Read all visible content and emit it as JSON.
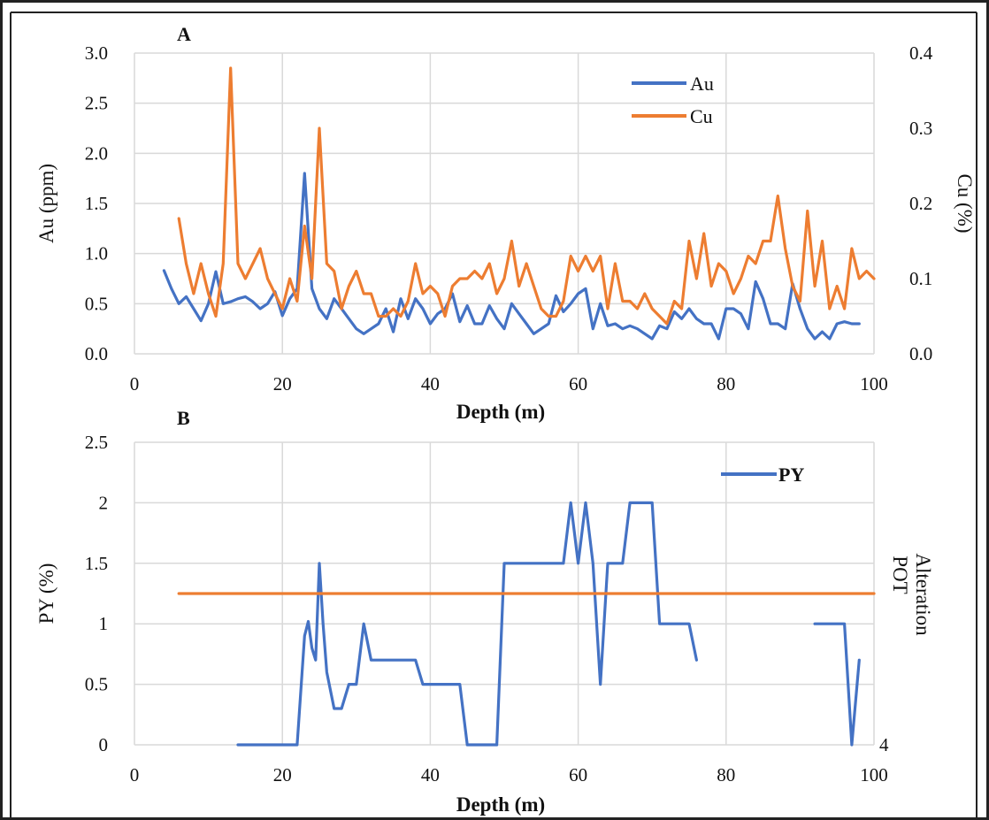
{
  "chart_data": [
    {
      "panel": "A",
      "type": "line",
      "xlabel": "Depth (m)",
      "ylabel_left": "Au (ppm)",
      "ylabel_right": "Cu (%)",
      "xlim": [
        0,
        100
      ],
      "ylim_left": [
        0,
        3.0
      ],
      "ylim_right": [
        0,
        0.4
      ],
      "x_ticks": [
        "0",
        "20",
        "40",
        "60",
        "80",
        "100"
      ],
      "y_ticks_left": [
        "0.0",
        "0.5",
        "1.0",
        "1.5",
        "2.0",
        "2.5",
        "3.0"
      ],
      "y_ticks_right": [
        "0.0",
        "0.1",
        "0.2",
        "0.3",
        "0.4"
      ],
      "grid": true,
      "legend": "top-right",
      "series": [
        {
          "name": "Au",
          "axis": "left",
          "color": "#4472C4",
          "points": [
            [
              4,
              0.83
            ],
            [
              5,
              0.65
            ],
            [
              6,
              0.5
            ],
            [
              7,
              0.57
            ],
            [
              8,
              0.45
            ],
            [
              9,
              0.33
            ],
            [
              10,
              0.5
            ],
            [
              11,
              0.82
            ],
            [
              12,
              0.5
            ],
            [
              13,
              0.52
            ],
            [
              14,
              0.55
            ],
            [
              15,
              0.57
            ],
            [
              16,
              0.52
            ],
            [
              17,
              0.45
            ],
            [
              18,
              0.5
            ],
            [
              19,
              0.62
            ],
            [
              20,
              0.38
            ],
            [
              21,
              0.55
            ],
            [
              22,
              0.65
            ],
            [
              23,
              1.8
            ],
            [
              24,
              0.65
            ],
            [
              25,
              0.45
            ],
            [
              26,
              0.35
            ],
            [
              27,
              0.55
            ],
            [
              28,
              0.45
            ],
            [
              29,
              0.35
            ],
            [
              30,
              0.25
            ],
            [
              31,
              0.2
            ],
            [
              32,
              0.25
            ],
            [
              33,
              0.3
            ],
            [
              34,
              0.45
            ],
            [
              35,
              0.22
            ],
            [
              36,
              0.55
            ],
            [
              37,
              0.35
            ],
            [
              38,
              0.55
            ],
            [
              39,
              0.45
            ],
            [
              40,
              0.3
            ],
            [
              41,
              0.4
            ],
            [
              42,
              0.45
            ],
            [
              43,
              0.6
            ],
            [
              44,
              0.32
            ],
            [
              45,
              0.48
            ],
            [
              46,
              0.3
            ],
            [
              47,
              0.3
            ],
            [
              48,
              0.48
            ],
            [
              49,
              0.35
            ],
            [
              50,
              0.25
            ],
            [
              51,
              0.5
            ],
            [
              52,
              0.4
            ],
            [
              53,
              0.3
            ],
            [
              54,
              0.2
            ],
            [
              55,
              0.25
            ],
            [
              56,
              0.3
            ],
            [
              57,
              0.58
            ],
            [
              58,
              0.42
            ],
            [
              59,
              0.5
            ],
            [
              60,
              0.6
            ],
            [
              61,
              0.65
            ],
            [
              62,
              0.25
            ],
            [
              63,
              0.5
            ],
            [
              64,
              0.28
            ],
            [
              65,
              0.3
            ],
            [
              66,
              0.25
            ],
            [
              67,
              0.28
            ],
            [
              68,
              0.25
            ],
            [
              69,
              0.2
            ],
            [
              70,
              0.15
            ],
            [
              71,
              0.28
            ],
            [
              72,
              0.25
            ],
            [
              73,
              0.42
            ],
            [
              74,
              0.35
            ],
            [
              75,
              0.45
            ],
            [
              76,
              0.35
            ],
            [
              77,
              0.3
            ],
            [
              78,
              0.3
            ],
            [
              79,
              0.15
            ],
            [
              80,
              0.45
            ],
            [
              81,
              0.45
            ],
            [
              82,
              0.4
            ],
            [
              83,
              0.25
            ],
            [
              84,
              0.72
            ],
            [
              85,
              0.55
            ],
            [
              86,
              0.3
            ],
            [
              87,
              0.3
            ],
            [
              88,
              0.25
            ],
            [
              89,
              0.7
            ],
            [
              90,
              0.45
            ],
            [
              91,
              0.25
            ],
            [
              92,
              0.15
            ],
            [
              93,
              0.22
            ],
            [
              94,
              0.15
            ],
            [
              95,
              0.3
            ],
            [
              96,
              0.32
            ],
            [
              97,
              0.3
            ],
            [
              98,
              0.3
            ]
          ]
        },
        {
          "name": "Cu",
          "axis": "right",
          "color": "#ED7D31",
          "points": [
            [
              6,
              0.18
            ],
            [
              7,
              0.12
            ],
            [
              8,
              0.08
            ],
            [
              9,
              0.12
            ],
            [
              10,
              0.08
            ],
            [
              11,
              0.05
            ],
            [
              12,
              0.12
            ],
            [
              13,
              0.38
            ],
            [
              14,
              0.12
            ],
            [
              15,
              0.1
            ],
            [
              16,
              0.12
            ],
            [
              17,
              0.14
            ],
            [
              18,
              0.1
            ],
            [
              19,
              0.08
            ],
            [
              20,
              0.06
            ],
            [
              21,
              0.1
            ],
            [
              22,
              0.07
            ],
            [
              23,
              0.17
            ],
            [
              24,
              0.1
            ],
            [
              25,
              0.3
            ],
            [
              26,
              0.12
            ],
            [
              27,
              0.11
            ],
            [
              28,
              0.06
            ],
            [
              29,
              0.09
            ],
            [
              30,
              0.11
            ],
            [
              31,
              0.08
            ],
            [
              32,
              0.08
            ],
            [
              33,
              0.05
            ],
            [
              34,
              0.05
            ],
            [
              35,
              0.06
            ],
            [
              36,
              0.05
            ],
            [
              37,
              0.07
            ],
            [
              38,
              0.12
            ],
            [
              39,
              0.08
            ],
            [
              40,
              0.09
            ],
            [
              41,
              0.08
            ],
            [
              42,
              0.05
            ],
            [
              43,
              0.09
            ],
            [
              44,
              0.1
            ],
            [
              45,
              0.1
            ],
            [
              46,
              0.11
            ],
            [
              47,
              0.1
            ],
            [
              48,
              0.12
            ],
            [
              49,
              0.08
            ],
            [
              50,
              0.1
            ],
            [
              51,
              0.15
            ],
            [
              52,
              0.09
            ],
            [
              53,
              0.12
            ],
            [
              54,
              0.09
            ],
            [
              55,
              0.06
            ],
            [
              56,
              0.05
            ],
            [
              57,
              0.05
            ],
            [
              58,
              0.07
            ],
            [
              59,
              0.13
            ],
            [
              60,
              0.11
            ],
            [
              61,
              0.13
            ],
            [
              62,
              0.11
            ],
            [
              63,
              0.13
            ],
            [
              64,
              0.06
            ],
            [
              65,
              0.12
            ],
            [
              66,
              0.07
            ],
            [
              67,
              0.07
            ],
            [
              68,
              0.06
            ],
            [
              69,
              0.08
            ],
            [
              70,
              0.06
            ],
            [
              71,
              0.05
            ],
            [
              72,
              0.04
            ],
            [
              73,
              0.07
            ],
            [
              74,
              0.06
            ],
            [
              75,
              0.15
            ],
            [
              76,
              0.1
            ],
            [
              77,
              0.16
            ],
            [
              78,
              0.09
            ],
            [
              79,
              0.12
            ],
            [
              80,
              0.11
            ],
            [
              81,
              0.08
            ],
            [
              82,
              0.1
            ],
            [
              83,
              0.13
            ],
            [
              84,
              0.12
            ],
            [
              85,
              0.15
            ],
            [
              86,
              0.15
            ],
            [
              87,
              0.21
            ],
            [
              88,
              0.14
            ],
            [
              89,
              0.09
            ],
            [
              90,
              0.07
            ],
            [
              91,
              0.19
            ],
            [
              92,
              0.09
            ],
            [
              93,
              0.15
            ],
            [
              94,
              0.06
            ],
            [
              95,
              0.09
            ],
            [
              96,
              0.06
            ],
            [
              97,
              0.14
            ],
            [
              98,
              0.1
            ],
            [
              99,
              0.11
            ],
            [
              100,
              0.1
            ]
          ]
        }
      ]
    },
    {
      "panel": "B",
      "type": "line",
      "xlabel": "Depth (m)",
      "ylabel_left": "PY (%)",
      "ylabel_right": "POT Alteration",
      "ylabel_right_lines": [
        "POT",
        "Alteration"
      ],
      "xlim": [
        0,
        100
      ],
      "ylim_left": [
        0,
        2.5
      ],
      "x_ticks": [
        "0",
        "20",
        "40",
        "60",
        "80",
        "100"
      ],
      "y_ticks_left": [
        "0",
        "0.5",
        "1",
        "1.5",
        "2",
        "2.5"
      ],
      "y_ticks_right": [
        "4"
      ],
      "grid": true,
      "legend": "top-right",
      "series": [
        {
          "name": "PY",
          "axis": "left",
          "color": "#4472C4",
          "segments": [
            [
              [
                14,
                0
              ],
              [
                22,
                0
              ],
              [
                23,
                0.9
              ],
              [
                23.5,
                1.02
              ],
              [
                24,
                0.8
              ],
              [
                24.5,
                0.7
              ],
              [
                25,
                1.5
              ],
              [
                25.5,
                1.0
              ],
              [
                26,
                0.6
              ],
              [
                27,
                0.3
              ],
              [
                28,
                0.3
              ],
              [
                29,
                0.5
              ],
              [
                30,
                0.5
              ],
              [
                31,
                1.0
              ],
              [
                32,
                0.7
              ],
              [
                38,
                0.7
              ],
              [
                39,
                0.5
              ],
              [
                44,
                0.5
              ],
              [
                45,
                0
              ],
              [
                49,
                0
              ],
              [
                50,
                1.5
              ],
              [
                58,
                1.5
              ],
              [
                59,
                2.0
              ],
              [
                60,
                1.5
              ],
              [
                61,
                2.0
              ],
              [
                62,
                1.5
              ],
              [
                63,
                0.5
              ],
              [
                64,
                1.5
              ],
              [
                66,
                1.5
              ],
              [
                67,
                2.0
              ],
              [
                70,
                2.0
              ],
              [
                71,
                1.0
              ],
              [
                75,
                1.0
              ],
              [
                76,
                0.7
              ]
            ],
            [
              [
                92,
                1.0
              ],
              [
                96,
                1.0
              ],
              [
                97,
                0
              ],
              [
                98,
                0.7
              ]
            ]
          ]
        },
        {
          "name": "",
          "axis": "left",
          "color": "#ED7D31",
          "points": [
            [
              6,
              1.25
            ],
            [
              100,
              1.25
            ]
          ]
        }
      ]
    }
  ]
}
